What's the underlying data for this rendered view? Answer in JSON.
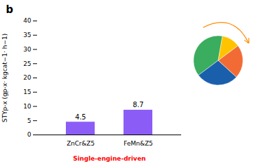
{
  "chart_data": [
    {
      "type": "bar",
      "categories": [
        "ZnCr&Z5",
        "FeMn&Z5"
      ],
      "values": [
        4.5,
        8.7
      ],
      "color": "#8B5CF6",
      "ylim": [
        0,
        40
      ],
      "yticks": [
        0,
        5,
        10,
        15,
        20,
        25,
        30,
        35,
        40
      ],
      "ylabel": "STYp-x (gp-x· kgcat−1· h−1)",
      "xlabel": "Single-engine-driven",
      "data_labels": true,
      "grid": false,
      "annotations": [
        "b"
      ]
    },
    {
      "type": "pie",
      "values": [
        38,
        28,
        22,
        12
      ],
      "colors": [
        "#3AAD5E",
        "#1A5FAB",
        "#F26B35",
        "#FFC300"
      ]
    }
  ]
}
